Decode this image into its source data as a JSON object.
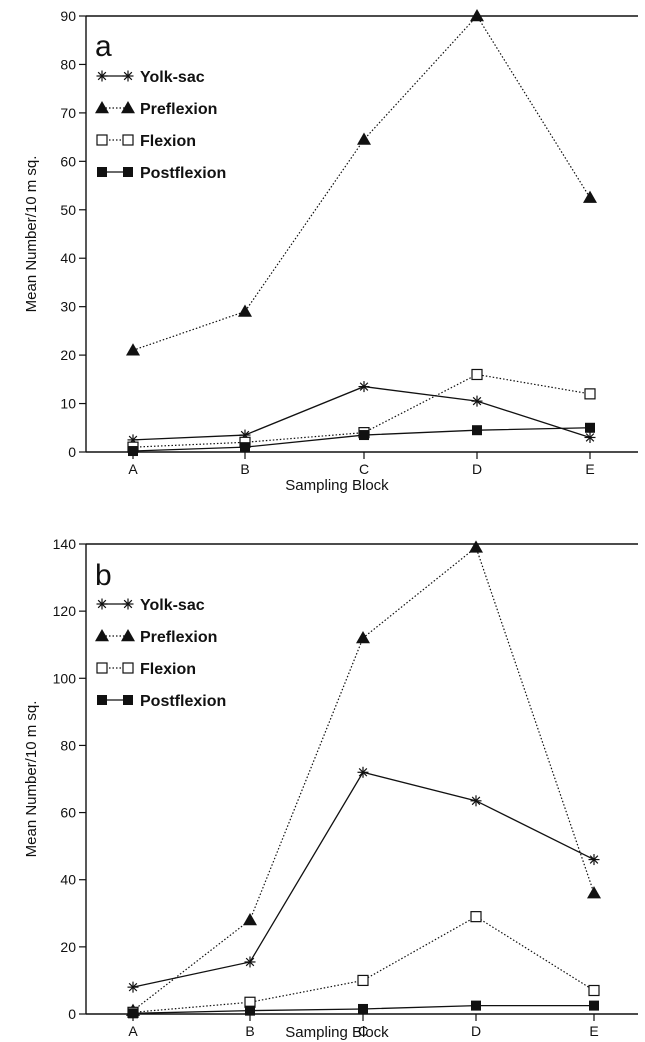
{
  "chart_data": [
    {
      "type": "line",
      "panel_label": "a",
      "categories": [
        "A",
        "B",
        "C",
        "D",
        "E"
      ],
      "xlabel": "Sampling Block",
      "ylabel": "Mean Number/10 m sq.",
      "ylim": [
        0,
        90
      ],
      "yticks": [
        "0",
        "10",
        "20",
        "30",
        "40",
        "50",
        "60",
        "70",
        "80",
        "90"
      ],
      "legend_position": "top-left",
      "grid": false,
      "series": [
        {
          "name": "Yolk-sac",
          "marker": "asterisk",
          "line": "solid",
          "values": [
            2.5,
            3.5,
            13.5,
            10.5,
            3
          ]
        },
        {
          "name": "Preflexion",
          "marker": "filled-triangle",
          "line": "dotted",
          "values": [
            21,
            29,
            64.5,
            90,
            52.5
          ]
        },
        {
          "name": "Flexion",
          "marker": "open-square",
          "line": "dotted",
          "values": [
            1,
            2,
            4,
            16,
            12
          ]
        },
        {
          "name": "Postflexion",
          "marker": "filled-square",
          "line": "solid",
          "values": [
            0.2,
            1,
            3.5,
            4.5,
            5
          ]
        }
      ]
    },
    {
      "type": "line",
      "panel_label": "b",
      "categories": [
        "A",
        "B",
        "C",
        "D",
        "E"
      ],
      "xlabel": "Sampling Block",
      "ylabel": "Mean Number/10 m sq.",
      "ylim": [
        0,
        140
      ],
      "yticks": [
        "0",
        "20",
        "40",
        "60",
        "80",
        "100",
        "120",
        "140"
      ],
      "legend_position": "top-left",
      "grid": false,
      "series": [
        {
          "name": "Yolk-sac",
          "marker": "asterisk",
          "line": "solid",
          "values": [
            8,
            15.5,
            72,
            63.5,
            46
          ]
        },
        {
          "name": "Preflexion",
          "marker": "filled-triangle",
          "line": "dotted",
          "values": [
            1,
            28,
            112,
            139,
            36
          ]
        },
        {
          "name": "Flexion",
          "marker": "open-square",
          "line": "dotted",
          "values": [
            0.5,
            3.5,
            10,
            29,
            7
          ]
        },
        {
          "name": "Postflexion",
          "marker": "filled-square",
          "line": "solid",
          "values": [
            0.2,
            1,
            1.5,
            2.5,
            2.5
          ]
        }
      ]
    }
  ]
}
